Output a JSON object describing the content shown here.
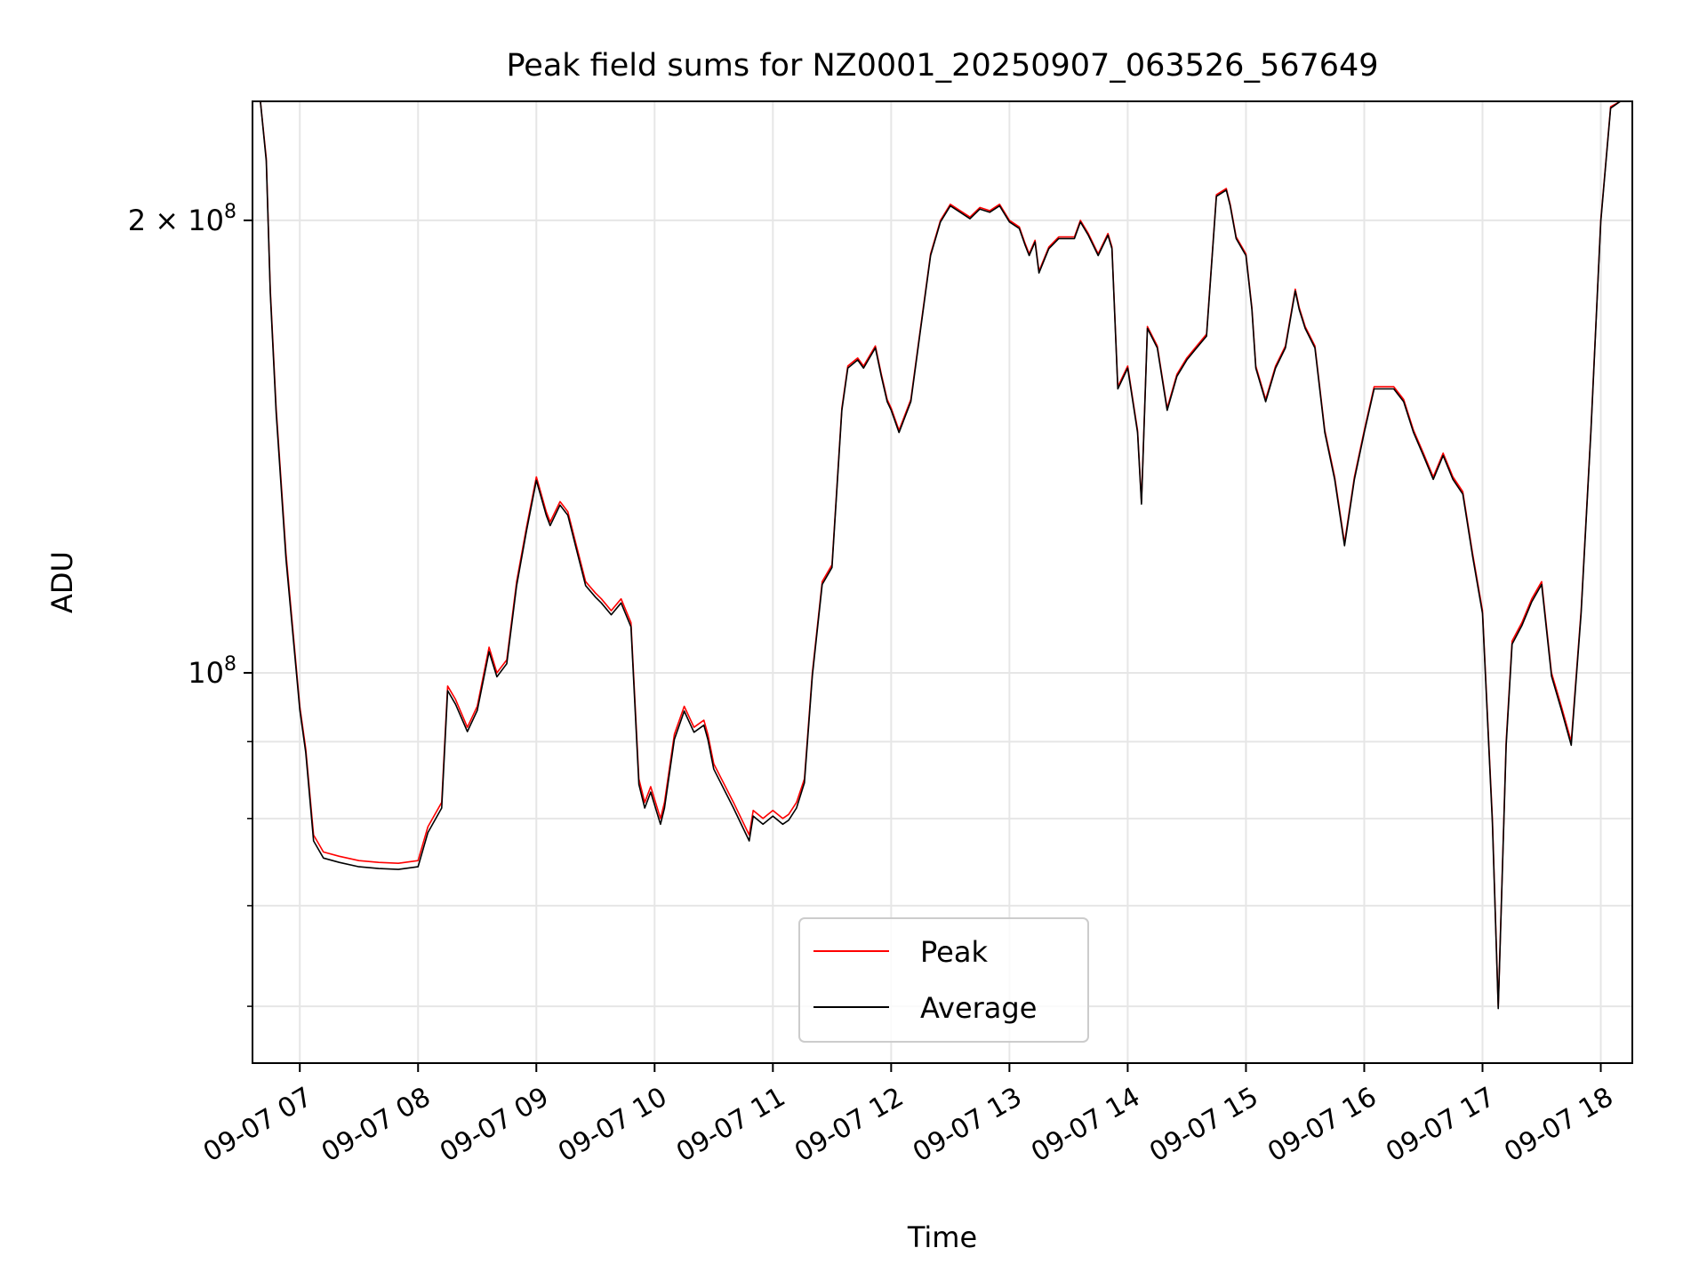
{
  "chart_data": {
    "type": "line",
    "title": "Peak field sums for NZ0001_20250907_063526_567649",
    "xlabel": "Time",
    "ylabel": "ADU",
    "y_scale": "log",
    "xlim": [
      "2025-09-07 06:36",
      "2025-09-07 18:16"
    ],
    "ylim": [
      55000000,
      240000000
    ],
    "grid": true,
    "legend_position": "lower center",
    "x_ticks": [
      {
        "value": "2025-09-07 07:00",
        "label": "09-07 07"
      },
      {
        "value": "2025-09-07 08:00",
        "label": "09-07 08"
      },
      {
        "value": "2025-09-07 09:00",
        "label": "09-07 09"
      },
      {
        "value": "2025-09-07 10:00",
        "label": "09-07 10"
      },
      {
        "value": "2025-09-07 11:00",
        "label": "09-07 11"
      },
      {
        "value": "2025-09-07 12:00",
        "label": "09-07 12"
      },
      {
        "value": "2025-09-07 13:00",
        "label": "09-07 13"
      },
      {
        "value": "2025-09-07 14:00",
        "label": "09-07 14"
      },
      {
        "value": "2025-09-07 15:00",
        "label": "09-07 15"
      },
      {
        "value": "2025-09-07 16:00",
        "label": "09-07 16"
      },
      {
        "value": "2025-09-07 17:00",
        "label": "09-07 17"
      },
      {
        "value": "2025-09-07 18:00",
        "label": "09-07 18"
      }
    ],
    "y_major_ticks": [
      {
        "value": 100000000,
        "label_base": "10",
        "label_exp": "8"
      },
      {
        "value": 200000000,
        "label_base": "2 × 10",
        "label_exp": "8"
      }
    ],
    "y_minor_ticks": [
      60000000,
      70000000,
      80000000,
      90000000
    ],
    "series": [
      {
        "name": "Peak",
        "color": "#ff0000",
        "x": [
          "2025-09-07 06:36",
          "2025-09-07 06:40",
          "2025-09-07 06:43",
          "2025-09-07 06:45",
          "2025-09-07 06:48",
          "2025-09-07 06:53",
          "2025-09-07 07:00",
          "2025-09-07 07:03",
          "2025-09-07 07:07",
          "2025-09-07 07:12",
          "2025-09-07 07:20",
          "2025-09-07 07:30",
          "2025-09-07 07:40",
          "2025-09-07 07:50",
          "2025-09-07 08:00",
          "2025-09-07 08:05",
          "2025-09-07 08:12",
          "2025-09-07 08:15",
          "2025-09-07 08:19",
          "2025-09-07 08:25",
          "2025-09-07 08:30",
          "2025-09-07 08:36",
          "2025-09-07 08:40",
          "2025-09-07 08:45",
          "2025-09-07 08:50",
          "2025-09-07 08:55",
          "2025-09-07 09:00",
          "2025-09-07 09:05",
          "2025-09-07 09:07",
          "2025-09-07 09:12",
          "2025-09-07 09:16",
          "2025-09-07 09:20",
          "2025-09-07 09:25",
          "2025-09-07 09:30",
          "2025-09-07 09:33",
          "2025-09-07 09:38",
          "2025-09-07 09:43",
          "2025-09-07 09:48",
          "2025-09-07 09:52",
          "2025-09-07 09:55",
          "2025-09-07 09:58",
          "2025-09-07 10:03",
          "2025-09-07 10:05",
          "2025-09-07 10:10",
          "2025-09-07 10:15",
          "2025-09-07 10:20",
          "2025-09-07 10:25",
          "2025-09-07 10:27",
          "2025-09-07 10:30",
          "2025-09-07 10:40",
          "2025-09-07 10:48",
          "2025-09-07 10:50",
          "2025-09-07 10:55",
          "2025-09-07 11:00",
          "2025-09-07 11:05",
          "2025-09-07 11:08",
          "2025-09-07 11:12",
          "2025-09-07 11:16",
          "2025-09-07 11:20",
          "2025-09-07 11:25",
          "2025-09-07 11:30",
          "2025-09-07 11:35",
          "2025-09-07 11:38",
          "2025-09-07 11:43",
          "2025-09-07 11:46",
          "2025-09-07 11:52",
          "2025-09-07 11:55",
          "2025-09-07 11:58",
          "2025-09-07 12:00",
          "2025-09-07 12:04",
          "2025-09-07 12:10",
          "2025-09-07 12:15",
          "2025-09-07 12:20",
          "2025-09-07 12:25",
          "2025-09-07 12:30",
          "2025-09-07 12:35",
          "2025-09-07 12:40",
          "2025-09-07 12:45",
          "2025-09-07 12:50",
          "2025-09-07 12:55",
          "2025-09-07 13:00",
          "2025-09-07 13:05",
          "2025-09-07 13:08",
          "2025-09-07 13:10",
          "2025-09-07 13:13",
          "2025-09-07 13:15",
          "2025-09-07 13:20",
          "2025-09-07 13:25",
          "2025-09-07 13:30",
          "2025-09-07 13:33",
          "2025-09-07 13:36",
          "2025-09-07 13:40",
          "2025-09-07 13:45",
          "2025-09-07 13:50",
          "2025-09-07 13:52",
          "2025-09-07 13:55",
          "2025-09-07 14:00",
          "2025-09-07 14:05",
          "2025-09-07 14:07",
          "2025-09-07 14:10",
          "2025-09-07 14:15",
          "2025-09-07 14:20",
          "2025-09-07 14:25",
          "2025-09-07 14:30",
          "2025-09-07 14:35",
          "2025-09-07 14:40",
          "2025-09-07 14:45",
          "2025-09-07 14:50",
          "2025-09-07 14:52",
          "2025-09-07 14:55",
          "2025-09-07 15:00",
          "2025-09-07 15:03",
          "2025-09-07 15:05",
          "2025-09-07 15:10",
          "2025-09-07 15:15",
          "2025-09-07 15:20",
          "2025-09-07 15:25",
          "2025-09-07 15:27",
          "2025-09-07 15:30",
          "2025-09-07 15:35",
          "2025-09-07 15:40",
          "2025-09-07 15:45",
          "2025-09-07 15:50",
          "2025-09-07 15:55",
          "2025-09-07 16:00",
          "2025-09-07 16:05",
          "2025-09-07 16:10",
          "2025-09-07 16:15",
          "2025-09-07 16:20",
          "2025-09-07 16:25",
          "2025-09-07 16:30",
          "2025-09-07 16:35",
          "2025-09-07 16:40",
          "2025-09-07 16:45",
          "2025-09-07 16:50",
          "2025-09-07 16:52",
          "2025-09-07 16:55",
          "2025-09-07 17:00",
          "2025-09-07 17:05",
          "2025-09-07 17:08",
          "2025-09-07 17:12",
          "2025-09-07 17:15",
          "2025-09-07 17:20",
          "2025-09-07 17:25",
          "2025-09-07 17:30",
          "2025-09-07 17:35",
          "2025-09-07 17:40",
          "2025-09-07 17:45",
          "2025-09-07 17:50",
          "2025-09-07 17:55",
          "2025-09-07 18:00",
          "2025-09-07 18:05",
          "2025-09-07 18:10",
          "2025-09-07 18:16"
        ],
        "y": [
          240000000,
          240000000,
          220000000,
          180000000,
          150000000,
          120000000,
          95000000,
          89000000,
          78000000,
          76000000,
          75500000,
          75000000,
          74800000,
          74700000,
          75000000,
          79000000,
          82000000,
          98000000,
          96000000,
          92000000,
          95000000,
          104000000,
          100000000,
          102000000,
          115000000,
          125000000,
          135000000,
          128000000,
          126000000,
          130000000,
          128000000,
          122000000,
          115000000,
          113000000,
          112000000,
          110000000,
          112000000,
          108000000,
          85000000,
          82000000,
          84000000,
          80000000,
          82000000,
          91000000,
          95000000,
          92000000,
          93000000,
          91000000,
          87000000,
          82000000,
          78000000,
          81000000,
          80000000,
          81000000,
          80000000,
          80500000,
          82000000,
          85000000,
          100000000,
          115000000,
          118000000,
          150000000,
          160000000,
          162000000,
          160000000,
          165000000,
          158000000,
          152000000,
          150000000,
          145000000,
          152000000,
          170000000,
          190000000,
          200000000,
          205000000,
          203000000,
          201000000,
          204000000,
          203000000,
          205000000,
          200000000,
          198000000,
          193000000,
          190000000,
          194000000,
          185000000,
          192000000,
          195000000,
          195000000,
          195000000,
          200000000,
          196000000,
          190000000,
          196000000,
          192000000,
          155000000,
          160000000,
          145000000,
          130000000,
          170000000,
          165000000,
          150000000,
          158000000,
          162000000,
          165000000,
          168000000,
          208000000,
          210000000,
          205000000,
          195000000,
          190000000,
          175000000,
          160000000,
          152000000,
          160000000,
          165000000,
          180000000,
          175000000,
          170000000,
          165000000,
          145000000,
          135000000,
          122000000,
          135000000,
          145000000,
          155000000,
          155000000,
          155000000,
          152000000,
          145000000,
          140000000,
          135000000,
          140000000,
          135000000,
          132000000,
          127000000,
          120000000,
          110000000,
          80000000,
          60000000,
          90000000,
          105000000,
          108000000,
          112000000,
          115000000,
          100000000,
          95000000,
          90000000,
          110000000,
          145000000,
          200000000,
          238000000,
          240000000,
          240000000
        ]
      },
      {
        "name": "Average",
        "color": "#000000",
        "x": [
          "2025-09-07 06:36",
          "2025-09-07 06:40",
          "2025-09-07 06:43",
          "2025-09-07 06:45",
          "2025-09-07 06:48",
          "2025-09-07 06:53",
          "2025-09-07 07:00",
          "2025-09-07 07:03",
          "2025-09-07 07:07",
          "2025-09-07 07:12",
          "2025-09-07 07:20",
          "2025-09-07 07:30",
          "2025-09-07 07:40",
          "2025-09-07 07:50",
          "2025-09-07 08:00",
          "2025-09-07 08:05",
          "2025-09-07 08:12",
          "2025-09-07 08:15",
          "2025-09-07 08:19",
          "2025-09-07 08:25",
          "2025-09-07 08:30",
          "2025-09-07 08:36",
          "2025-09-07 08:40",
          "2025-09-07 08:45",
          "2025-09-07 08:50",
          "2025-09-07 08:55",
          "2025-09-07 09:00",
          "2025-09-07 09:05",
          "2025-09-07 09:07",
          "2025-09-07 09:12",
          "2025-09-07 09:16",
          "2025-09-07 09:20",
          "2025-09-07 09:25",
          "2025-09-07 09:30",
          "2025-09-07 09:33",
          "2025-09-07 09:38",
          "2025-09-07 09:43",
          "2025-09-07 09:48",
          "2025-09-07 09:52",
          "2025-09-07 09:55",
          "2025-09-07 09:58",
          "2025-09-07 10:03",
          "2025-09-07 10:05",
          "2025-09-07 10:10",
          "2025-09-07 10:15",
          "2025-09-07 10:20",
          "2025-09-07 10:25",
          "2025-09-07 10:27",
          "2025-09-07 10:30",
          "2025-09-07 10:40",
          "2025-09-07 10:48",
          "2025-09-07 10:50",
          "2025-09-07 10:55",
          "2025-09-07 11:00",
          "2025-09-07 11:05",
          "2025-09-07 11:08",
          "2025-09-07 11:12",
          "2025-09-07 11:16",
          "2025-09-07 11:20",
          "2025-09-07 11:25",
          "2025-09-07 11:30",
          "2025-09-07 11:35",
          "2025-09-07 11:38",
          "2025-09-07 11:43",
          "2025-09-07 11:46",
          "2025-09-07 11:52",
          "2025-09-07 11:55",
          "2025-09-07 11:58",
          "2025-09-07 12:00",
          "2025-09-07 12:04",
          "2025-09-07 12:10",
          "2025-09-07 12:15",
          "2025-09-07 12:20",
          "2025-09-07 12:25",
          "2025-09-07 12:30",
          "2025-09-07 12:35",
          "2025-09-07 12:40",
          "2025-09-07 12:45",
          "2025-09-07 12:50",
          "2025-09-07 12:55",
          "2025-09-07 13:00",
          "2025-09-07 13:05",
          "2025-09-07 13:08",
          "2025-09-07 13:10",
          "2025-09-07 13:13",
          "2025-09-07 13:15",
          "2025-09-07 13:20",
          "2025-09-07 13:25",
          "2025-09-07 13:30",
          "2025-09-07 13:33",
          "2025-09-07 13:36",
          "2025-09-07 13:40",
          "2025-09-07 13:45",
          "2025-09-07 13:50",
          "2025-09-07 13:52",
          "2025-09-07 13:55",
          "2025-09-07 14:00",
          "2025-09-07 14:05",
          "2025-09-07 14:07",
          "2025-09-07 14:10",
          "2025-09-07 14:15",
          "2025-09-07 14:20",
          "2025-09-07 14:25",
          "2025-09-07 14:30",
          "2025-09-07 14:35",
          "2025-09-07 14:40",
          "2025-09-07 14:45",
          "2025-09-07 14:50",
          "2025-09-07 14:52",
          "2025-09-07 14:55",
          "2025-09-07 15:00",
          "2025-09-07 15:03",
          "2025-09-07 15:05",
          "2025-09-07 15:10",
          "2025-09-07 15:15",
          "2025-09-07 15:20",
          "2025-09-07 15:25",
          "2025-09-07 15:27",
          "2025-09-07 15:30",
          "2025-09-07 15:35",
          "2025-09-07 15:40",
          "2025-09-07 15:45",
          "2025-09-07 15:50",
          "2025-09-07 15:55",
          "2025-09-07 16:00",
          "2025-09-07 16:05",
          "2025-09-07 16:10",
          "2025-09-07 16:15",
          "2025-09-07 16:20",
          "2025-09-07 16:25",
          "2025-09-07 16:30",
          "2025-09-07 16:35",
          "2025-09-07 16:40",
          "2025-09-07 16:45",
          "2025-09-07 16:50",
          "2025-09-07 16:52",
          "2025-09-07 16:55",
          "2025-09-07 17:00",
          "2025-09-07 17:05",
          "2025-09-07 17:08",
          "2025-09-07 17:12",
          "2025-09-07 17:15",
          "2025-09-07 17:20",
          "2025-09-07 17:25",
          "2025-09-07 17:30",
          "2025-09-07 17:35",
          "2025-09-07 17:40",
          "2025-09-07 17:45",
          "2025-09-07 17:50",
          "2025-09-07 17:55",
          "2025-09-07 18:00",
          "2025-09-07 18:05",
          "2025-09-07 18:10",
          "2025-09-07 18:16"
        ],
        "y": [
          240000000,
          240000000,
          219000000,
          179000000,
          149000000,
          119000000,
          94500000,
          88500000,
          77300000,
          75300000,
          74800000,
          74300000,
          74100000,
          74000000,
          74300000,
          78300000,
          81300000,
          97300000,
          95300000,
          91400000,
          94400000,
          103300000,
          99400000,
          101400000,
          114300000,
          124300000,
          134300000,
          127300000,
          125300000,
          129300000,
          127300000,
          121300000,
          114300000,
          112300000,
          111300000,
          109300000,
          111300000,
          107300000,
          84300000,
          81300000,
          83300000,
          79300000,
          81300000,
          90300000,
          94300000,
          91300000,
          92300000,
          90300000,
          86300000,
          81300000,
          77300000,
          80300000,
          79300000,
          80300000,
          79300000,
          79800000,
          81300000,
          84500000,
          99500000,
          114500000,
          117500000,
          149500000,
          159500000,
          161500000,
          159500000,
          164500000,
          157500000,
          151500000,
          149500000,
          144500000,
          151500000,
          169500000,
          189500000,
          199500000,
          204500000,
          202500000,
          200500000,
          203500000,
          202500000,
          204500000,
          199500000,
          197500000,
          192500000,
          189500000,
          193500000,
          184500000,
          191500000,
          194500000,
          194500000,
          194500000,
          199500000,
          195500000,
          189500000,
          195500000,
          191500000,
          154500000,
          159500000,
          144500000,
          129500000,
          169500000,
          164500000,
          149500000,
          157500000,
          161500000,
          164500000,
          167500000,
          207500000,
          209500000,
          204500000,
          194500000,
          189500000,
          174500000,
          159500000,
          151500000,
          159500000,
          164500000,
          179500000,
          174500000,
          169500000,
          164500000,
          144500000,
          134500000,
          121500000,
          134500000,
          144500000,
          154500000,
          154500000,
          154500000,
          151500000,
          144500000,
          139500000,
          134500000,
          139500000,
          134500000,
          131500000,
          126500000,
          119500000,
          109500000,
          79500000,
          59800000,
          89500000,
          104500000,
          107500000,
          111500000,
          114500000,
          99500000,
          94500000,
          89500000,
          109500000,
          144500000,
          199500000,
          237500000,
          240000000,
          240000000
        ]
      }
    ]
  }
}
